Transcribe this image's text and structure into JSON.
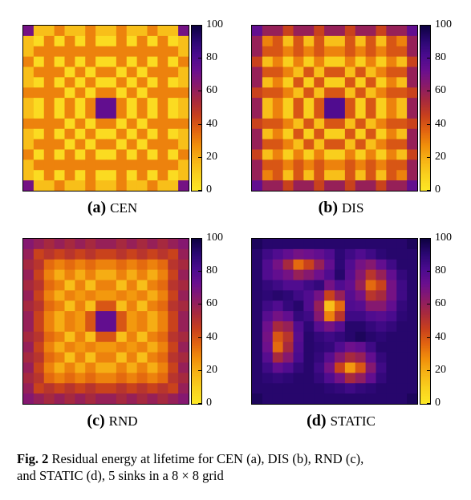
{
  "caption": {
    "fig_label": "Fig. 2",
    "text_line1": "Residual energy at lifetime for CEN (a), DIS (b), RND (c),",
    "text_line2": "and STATIC (d), 5 sinks in a 8 × 8 grid"
  },
  "colors": {
    "palette": [
      "#fde725",
      "#f9d21e",
      "#f7b516",
      "#f18f0b",
      "#e26410",
      "#c8401d",
      "#a82a3d",
      "#8a1a6a",
      "#6a0f8f",
      "#4a0b8f",
      "#2a0772",
      "#0d0240"
    ]
  },
  "chart_data": [
    {
      "type": "heatmap",
      "panel_letter": "a",
      "panel_name": "CEN",
      "colorbar_ticks": [
        "0",
        "20",
        "40",
        "60",
        "80",
        "100"
      ],
      "zlim": [
        0,
        100
      ],
      "grid_size": [
        16,
        16
      ],
      "values": [
        [
          70,
          15,
          15,
          30,
          15,
          15,
          30,
          15,
          15,
          30,
          15,
          15,
          30,
          15,
          15,
          70
        ],
        [
          15,
          5,
          30,
          5,
          30,
          5,
          30,
          5,
          5,
          30,
          5,
          30,
          5,
          30,
          5,
          15
        ],
        [
          15,
          30,
          30,
          30,
          30,
          30,
          30,
          30,
          30,
          30,
          30,
          30,
          30,
          30,
          30,
          15
        ],
        [
          30,
          5,
          30,
          5,
          30,
          5,
          30,
          5,
          5,
          30,
          5,
          30,
          5,
          30,
          5,
          30
        ],
        [
          15,
          30,
          30,
          30,
          5,
          30,
          5,
          30,
          30,
          5,
          30,
          5,
          30,
          30,
          30,
          15
        ],
        [
          15,
          5,
          30,
          5,
          30,
          5,
          30,
          5,
          5,
          30,
          5,
          30,
          5,
          30,
          5,
          15
        ],
        [
          30,
          30,
          30,
          30,
          5,
          30,
          5,
          30,
          30,
          5,
          30,
          5,
          30,
          30,
          30,
          30
        ],
        [
          15,
          5,
          30,
          5,
          30,
          5,
          30,
          75,
          75,
          30,
          5,
          30,
          5,
          30,
          5,
          15
        ],
        [
          15,
          5,
          30,
          5,
          30,
          5,
          30,
          75,
          75,
          30,
          5,
          30,
          5,
          30,
          5,
          15
        ],
        [
          30,
          30,
          30,
          30,
          5,
          30,
          5,
          30,
          30,
          5,
          30,
          5,
          30,
          30,
          30,
          30
        ],
        [
          15,
          5,
          30,
          5,
          30,
          5,
          30,
          5,
          5,
          30,
          5,
          30,
          5,
          30,
          5,
          15
        ],
        [
          15,
          30,
          30,
          30,
          5,
          30,
          5,
          30,
          30,
          5,
          30,
          5,
          30,
          30,
          30,
          15
        ],
        [
          30,
          5,
          30,
          5,
          30,
          5,
          30,
          5,
          5,
          30,
          5,
          30,
          5,
          30,
          5,
          30
        ],
        [
          15,
          30,
          30,
          30,
          30,
          30,
          30,
          30,
          30,
          30,
          30,
          30,
          30,
          30,
          30,
          15
        ],
        [
          15,
          5,
          30,
          5,
          30,
          5,
          30,
          5,
          5,
          30,
          5,
          30,
          5,
          30,
          5,
          15
        ],
        [
          70,
          15,
          15,
          30,
          15,
          15,
          30,
          15,
          15,
          30,
          15,
          15,
          30,
          15,
          15,
          70
        ]
      ]
    },
    {
      "type": "heatmap",
      "panel_letter": "b",
      "panel_name": "DIS",
      "colorbar_ticks": [
        "0",
        "20",
        "40",
        "60",
        "80",
        "100"
      ],
      "zlim": [
        0,
        100
      ],
      "grid_size": [
        16,
        16
      ],
      "values": [
        [
          75,
          60,
          60,
          45,
          60,
          60,
          45,
          60,
          60,
          45,
          60,
          60,
          45,
          60,
          60,
          75
        ],
        [
          60,
          30,
          40,
          15,
          40,
          15,
          40,
          15,
          15,
          40,
          15,
          40,
          15,
          40,
          30,
          60
        ],
        [
          60,
          40,
          40,
          30,
          40,
          30,
          40,
          30,
          30,
          40,
          30,
          40,
          30,
          40,
          40,
          60
        ],
        [
          45,
          15,
          30,
          10,
          30,
          10,
          30,
          10,
          10,
          30,
          10,
          30,
          10,
          30,
          15,
          45
        ],
        [
          60,
          40,
          40,
          30,
          15,
          40,
          15,
          40,
          40,
          15,
          40,
          15,
          30,
          40,
          40,
          60
        ],
        [
          60,
          15,
          30,
          10,
          40,
          10,
          40,
          10,
          10,
          40,
          10,
          40,
          10,
          30,
          15,
          60
        ],
        [
          45,
          40,
          40,
          30,
          15,
          40,
          15,
          40,
          40,
          15,
          40,
          15,
          30,
          40,
          40,
          45
        ],
        [
          60,
          15,
          30,
          10,
          40,
          10,
          40,
          80,
          80,
          40,
          10,
          40,
          10,
          30,
          15,
          60
        ],
        [
          60,
          15,
          30,
          10,
          40,
          10,
          40,
          80,
          80,
          40,
          10,
          40,
          10,
          30,
          15,
          60
        ],
        [
          45,
          40,
          40,
          30,
          15,
          40,
          15,
          40,
          40,
          15,
          40,
          15,
          30,
          40,
          40,
          45
        ],
        [
          60,
          15,
          30,
          10,
          40,
          10,
          40,
          10,
          10,
          40,
          10,
          40,
          10,
          30,
          15,
          60
        ],
        [
          60,
          40,
          40,
          30,
          15,
          40,
          15,
          40,
          40,
          15,
          40,
          15,
          30,
          40,
          40,
          60
        ],
        [
          45,
          15,
          30,
          10,
          30,
          10,
          30,
          10,
          10,
          30,
          10,
          30,
          10,
          30,
          15,
          45
        ],
        [
          60,
          40,
          40,
          30,
          40,
          30,
          40,
          30,
          30,
          40,
          30,
          40,
          30,
          40,
          40,
          60
        ],
        [
          60,
          30,
          40,
          15,
          40,
          15,
          40,
          15,
          15,
          40,
          15,
          40,
          15,
          40,
          30,
          60
        ],
        [
          75,
          60,
          60,
          45,
          60,
          60,
          45,
          60,
          60,
          45,
          60,
          60,
          45,
          60,
          60,
          75
        ]
      ]
    },
    {
      "type": "heatmap",
      "panel_letter": "c",
      "panel_name": "RND",
      "colorbar_ticks": [
        "0",
        "20",
        "40",
        "60",
        "80",
        "100"
      ],
      "zlim": [
        0,
        100
      ],
      "grid_size": [
        16,
        16
      ],
      "values": [
        [
          65,
          60,
          55,
          60,
          55,
          60,
          55,
          60,
          60,
          55,
          60,
          55,
          60,
          55,
          60,
          65
        ],
        [
          60,
          45,
          50,
          45,
          50,
          45,
          50,
          45,
          45,
          50,
          45,
          50,
          45,
          50,
          45,
          60
        ],
        [
          55,
          50,
          35,
          30,
          35,
          30,
          35,
          30,
          30,
          35,
          30,
          35,
          30,
          35,
          50,
          55
        ],
        [
          60,
          45,
          30,
          20,
          30,
          20,
          30,
          20,
          20,
          30,
          20,
          30,
          20,
          30,
          45,
          60
        ],
        [
          55,
          50,
          35,
          30,
          15,
          30,
          15,
          30,
          30,
          15,
          30,
          15,
          30,
          35,
          50,
          55
        ],
        [
          60,
          45,
          30,
          20,
          30,
          25,
          30,
          25,
          25,
          30,
          25,
          30,
          20,
          30,
          45,
          60
        ],
        [
          55,
          50,
          35,
          30,
          15,
          30,
          15,
          40,
          40,
          15,
          30,
          15,
          30,
          35,
          50,
          55
        ],
        [
          60,
          45,
          30,
          20,
          30,
          25,
          40,
          75,
          75,
          40,
          25,
          30,
          20,
          30,
          45,
          60
        ],
        [
          60,
          45,
          30,
          20,
          30,
          25,
          40,
          75,
          75,
          40,
          25,
          30,
          20,
          30,
          45,
          60
        ],
        [
          55,
          50,
          35,
          30,
          15,
          30,
          15,
          40,
          40,
          15,
          30,
          15,
          30,
          35,
          50,
          55
        ],
        [
          60,
          45,
          30,
          20,
          30,
          25,
          30,
          25,
          25,
          30,
          25,
          30,
          20,
          30,
          45,
          60
        ],
        [
          55,
          50,
          35,
          30,
          15,
          30,
          15,
          30,
          30,
          15,
          30,
          15,
          30,
          35,
          50,
          55
        ],
        [
          60,
          45,
          30,
          20,
          30,
          20,
          30,
          20,
          20,
          30,
          20,
          30,
          20,
          30,
          45,
          60
        ],
        [
          55,
          50,
          35,
          30,
          35,
          30,
          35,
          30,
          30,
          35,
          30,
          35,
          30,
          35,
          50,
          55
        ],
        [
          60,
          45,
          50,
          45,
          50,
          45,
          50,
          45,
          45,
          50,
          45,
          50,
          45,
          50,
          45,
          60
        ],
        [
          65,
          60,
          55,
          60,
          55,
          60,
          55,
          60,
          60,
          55,
          60,
          55,
          60,
          55,
          60,
          65
        ]
      ]
    },
    {
      "type": "heatmap",
      "panel_letter": "d",
      "panel_name": "STATIC",
      "colorbar_ticks": [
        "0",
        "20",
        "40",
        "60",
        "80",
        "100"
      ],
      "zlim": [
        0,
        100
      ],
      "grid_size": [
        16,
        16
      ],
      "values": [
        [
          95,
          92,
          92,
          92,
          92,
          92,
          92,
          92,
          92,
          92,
          92,
          92,
          92,
          92,
          92,
          95
        ],
        [
          92,
          85,
          80,
          75,
          70,
          72,
          75,
          80,
          90,
          85,
          80,
          85,
          90,
          92,
          92,
          92
        ],
        [
          92,
          80,
          70,
          55,
          35,
          45,
          60,
          75,
          90,
          80,
          70,
          65,
          75,
          85,
          92,
          92
        ],
        [
          92,
          80,
          75,
          70,
          60,
          65,
          72,
          80,
          92,
          78,
          65,
          50,
          60,
          75,
          88,
          92
        ],
        [
          92,
          88,
          85,
          80,
          80,
          85,
          88,
          70,
          80,
          75,
          60,
          35,
          45,
          70,
          85,
          92
        ],
        [
          92,
          90,
          92,
          90,
          85,
          80,
          70,
          45,
          60,
          78,
          70,
          50,
          55,
          70,
          85,
          92
        ],
        [
          92,
          85,
          80,
          88,
          92,
          80,
          60,
          15,
          35,
          80,
          78,
          65,
          65,
          75,
          88,
          92
        ],
        [
          92,
          78,
          70,
          75,
          88,
          85,
          65,
          30,
          50,
          85,
          85,
          80,
          78,
          82,
          90,
          92
        ],
        [
          92,
          72,
          55,
          60,
          80,
          90,
          78,
          70,
          78,
          92,
          92,
          88,
          85,
          88,
          92,
          92
        ],
        [
          92,
          70,
          40,
          50,
          78,
          92,
          88,
          85,
          88,
          92,
          95,
          92,
          90,
          92,
          92,
          92
        ],
        [
          92,
          72,
          35,
          55,
          80,
          92,
          90,
          88,
          80,
          72,
          75,
          85,
          92,
          92,
          92,
          92
        ],
        [
          92,
          78,
          55,
          65,
          82,
          92,
          88,
          78,
          65,
          55,
          60,
          75,
          88,
          92,
          92,
          92
        ],
        [
          92,
          85,
          75,
          80,
          88,
          92,
          85,
          70,
          45,
          25,
          40,
          65,
          85,
          92,
          92,
          92
        ],
        [
          92,
          90,
          88,
          90,
          92,
          92,
          88,
          80,
          70,
          55,
          62,
          75,
          88,
          92,
          92,
          92
        ],
        [
          92,
          92,
          92,
          92,
          92,
          92,
          92,
          90,
          88,
          85,
          88,
          90,
          92,
          92,
          92,
          92
        ],
        [
          95,
          92,
          92,
          92,
          92,
          92,
          92,
          92,
          92,
          92,
          92,
          92,
          92,
          92,
          92,
          95
        ]
      ]
    }
  ]
}
